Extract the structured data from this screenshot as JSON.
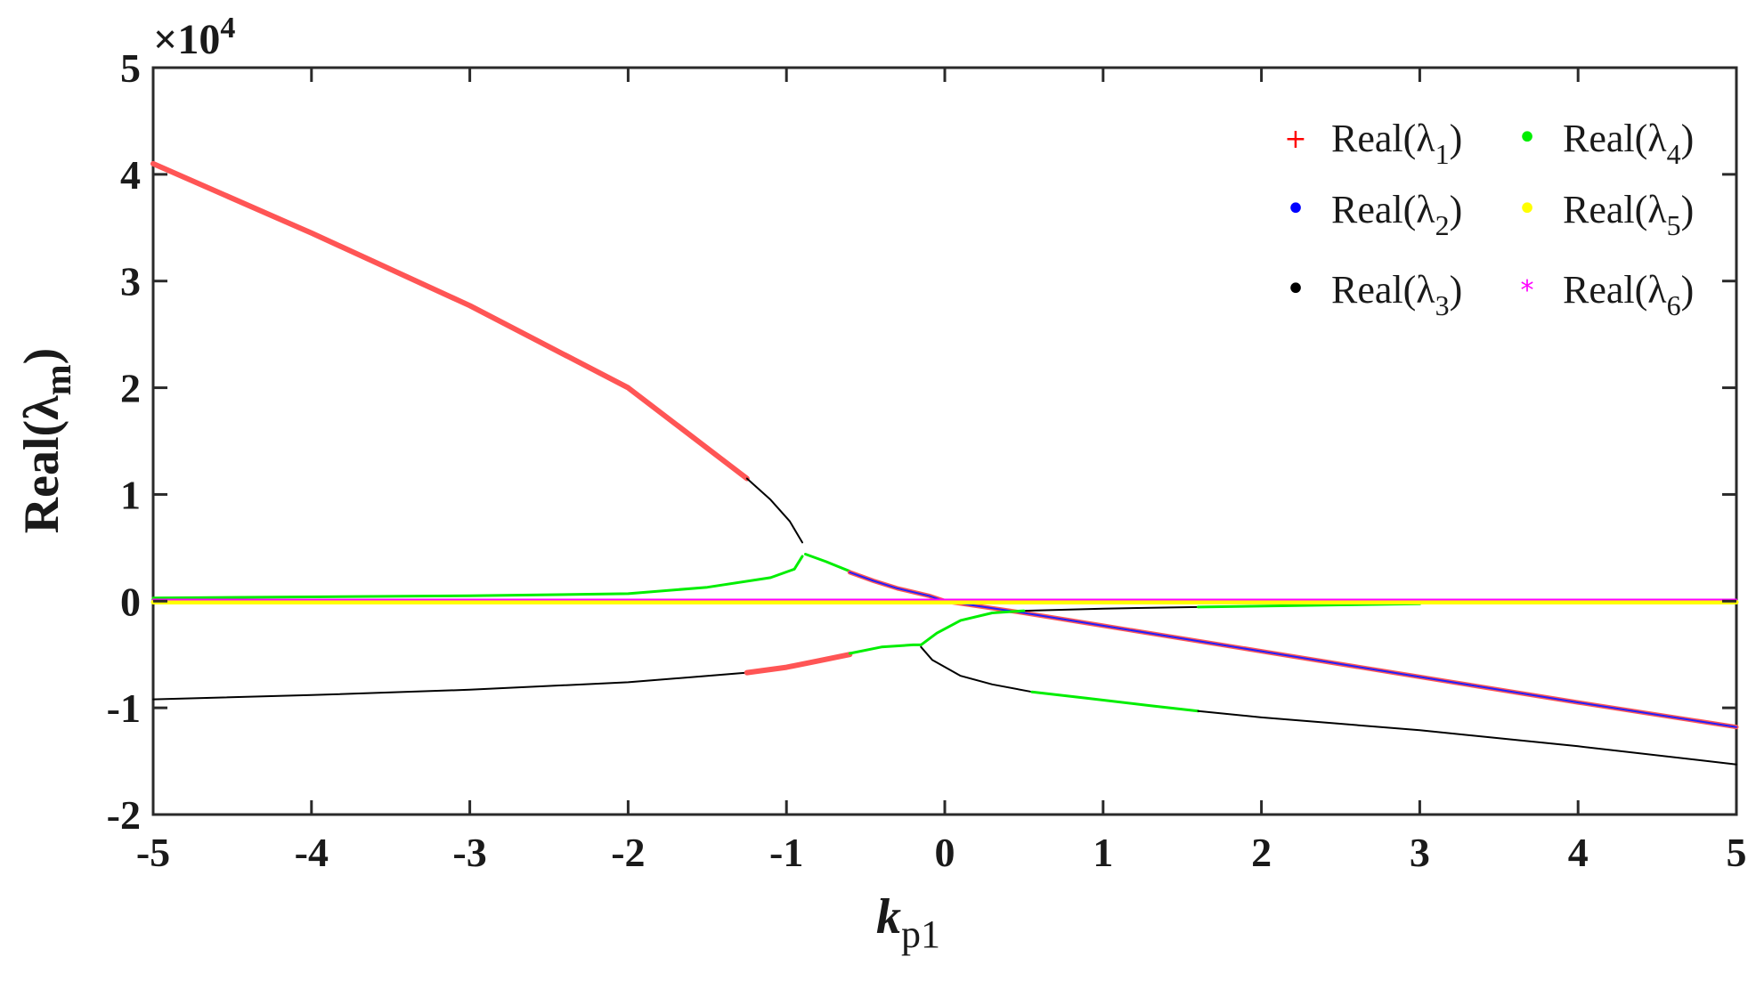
{
  "chart_data": {
    "type": "line",
    "xlabel": "k",
    "xlabel_sub": "p1",
    "ylabel": "Real(λ",
    "ylabel_sub": "m",
    "ylabel_close": ")",
    "exponent_label": "×10",
    "exponent_power": "4",
    "xlim": [
      -5,
      5
    ],
    "ylim": [
      -20000,
      50000
    ],
    "xticks": [
      -5,
      -4,
      -3,
      -2,
      -1,
      0,
      1,
      2,
      3,
      4,
      5
    ],
    "xtick_labels": [
      "-5",
      "-4",
      "-3",
      "-2",
      "-1",
      "0",
      "1",
      "2",
      "3",
      "4",
      "5"
    ],
    "yticks": [
      -20000,
      -10000,
      0,
      10000,
      20000,
      30000,
      40000,
      50000
    ],
    "ytick_labels": [
      "-2",
      "-1",
      "0",
      "1",
      "2",
      "3",
      "4",
      "5"
    ],
    "grid": false,
    "legend_position": "top-right",
    "legend": [
      {
        "prefix": "Real(λ",
        "sub": "1",
        "suffix": ")",
        "marker": "+",
        "color": "#ff0000"
      },
      {
        "prefix": "Real(λ",
        "sub": "2",
        "suffix": ")",
        "marker": "•",
        "color": "#0000ff"
      },
      {
        "prefix": "Real(λ",
        "sub": "3",
        "suffix": ")",
        "marker": "•",
        "color": "#000000"
      },
      {
        "prefix": "Real(λ",
        "sub": "4",
        "suffix": ")",
        "marker": "•",
        "color": "#00ee00"
      },
      {
        "prefix": "Real(λ",
        "sub": "5",
        "suffix": ")",
        "marker": "•",
        "color": "#ffff00"
      },
      {
        "prefix": "Real(λ",
        "sub": "6",
        "suffix": ")",
        "marker": "*",
        "color": "#ff00ff"
      }
    ],
    "segments": [
      {
        "color": "#ff5555",
        "width": 6,
        "points": [
          [
            -5,
            41000
          ],
          [
            -4,
            34500
          ],
          [
            -3,
            27700
          ],
          [
            -2,
            20000
          ],
          [
            -1.25,
            11500
          ]
        ]
      },
      {
        "color": "#000000",
        "width": 2,
        "points": [
          [
            -1.25,
            11500
          ],
          [
            -1.1,
            9500
          ],
          [
            -0.98,
            7500
          ],
          [
            -0.9,
            5500
          ]
        ]
      },
      {
        "color": "#00ee00",
        "width": 3,
        "points": [
          [
            -5,
            300
          ],
          [
            -4,
            400
          ],
          [
            -3,
            500
          ],
          [
            -2,
            700
          ],
          [
            -1.5,
            1300
          ],
          [
            -1.1,
            2200
          ],
          [
            -0.95,
            3000
          ],
          [
            -0.9,
            4200
          ]
        ]
      },
      {
        "color": "#00ee00",
        "width": 3,
        "points": [
          [
            -0.88,
            4400
          ],
          [
            -0.75,
            3700
          ],
          [
            -0.6,
            2800
          ]
        ]
      },
      {
        "color": "#ff5555",
        "width": 5,
        "points": [
          [
            -0.6,
            2700
          ],
          [
            -0.45,
            1900
          ],
          [
            -0.3,
            1200
          ],
          [
            -0.1,
            500
          ],
          [
            0,
            0
          ],
          [
            0.5,
            -1100
          ],
          [
            1,
            -2300
          ],
          [
            2,
            -4700
          ],
          [
            3,
            -7100
          ],
          [
            4,
            -9500
          ],
          [
            5,
            -11800
          ]
        ]
      },
      {
        "color": "#2020ff",
        "width": 2,
        "points": [
          [
            -0.6,
            2700
          ],
          [
            -0.45,
            1900
          ],
          [
            -0.3,
            1200
          ],
          [
            -0.1,
            500
          ],
          [
            0,
            0
          ],
          [
            0.5,
            -1100
          ],
          [
            1,
            -2300
          ],
          [
            2,
            -4700
          ],
          [
            3,
            -7100
          ],
          [
            4,
            -9500
          ],
          [
            5,
            -11800
          ]
        ]
      },
      {
        "color": "#000000",
        "width": 2,
        "points": [
          [
            0.5,
            -900
          ],
          [
            1,
            -700
          ],
          [
            1.6,
            -550
          ]
        ]
      },
      {
        "color": "#00ee00",
        "width": 3,
        "points": [
          [
            1.6,
            -550
          ],
          [
            2.5,
            -350
          ],
          [
            3,
            -250
          ]
        ]
      },
      {
        "color": "#000000",
        "width": 2,
        "points": [
          [
            -5,
            -9200
          ],
          [
            -4,
            -8800
          ],
          [
            -3,
            -8300
          ],
          [
            -2,
            -7600
          ],
          [
            -1.25,
            -6700
          ]
        ]
      },
      {
        "color": "#ff5555",
        "width": 6,
        "points": [
          [
            -1.25,
            -6700
          ],
          [
            -1,
            -6200
          ],
          [
            -0.8,
            -5600
          ],
          [
            -0.6,
            -5000
          ]
        ]
      },
      {
        "color": "#00ee00",
        "width": 3,
        "points": [
          [
            -0.6,
            -4900
          ],
          [
            -0.4,
            -4300
          ],
          [
            -0.2,
            -4100
          ],
          [
            -0.15,
            -4100
          ]
        ]
      },
      {
        "color": "#00ee00",
        "width": 3,
        "points": [
          [
            -0.15,
            -4100
          ],
          [
            -0.05,
            -3000
          ],
          [
            0.1,
            -1800
          ],
          [
            0.3,
            -1100
          ],
          [
            0.5,
            -900
          ]
        ]
      },
      {
        "color": "#000000",
        "width": 2,
        "points": [
          [
            -0.15,
            -4300
          ],
          [
            -0.08,
            -5500
          ],
          [
            0.1,
            -7000
          ],
          [
            0.3,
            -7800
          ],
          [
            0.55,
            -8500
          ]
        ]
      },
      {
        "color": "#00ee00",
        "width": 3,
        "points": [
          [
            0.55,
            -8500
          ],
          [
            0.9,
            -9100
          ],
          [
            1.3,
            -9800
          ],
          [
            1.6,
            -10300
          ]
        ]
      },
      {
        "color": "#000000",
        "width": 2,
        "points": [
          [
            1.6,
            -10300
          ],
          [
            2,
            -10900
          ],
          [
            3,
            -12100
          ],
          [
            4,
            -13600
          ],
          [
            5,
            -15300
          ]
        ]
      },
      {
        "color": "#ffff00",
        "width": 5,
        "points": [
          [
            -5,
            -100
          ],
          [
            5,
            -100
          ]
        ]
      },
      {
        "color": "#ff00ff",
        "width": 2,
        "points": [
          [
            -5,
            150
          ],
          [
            5,
            150
          ]
        ]
      }
    ]
  }
}
